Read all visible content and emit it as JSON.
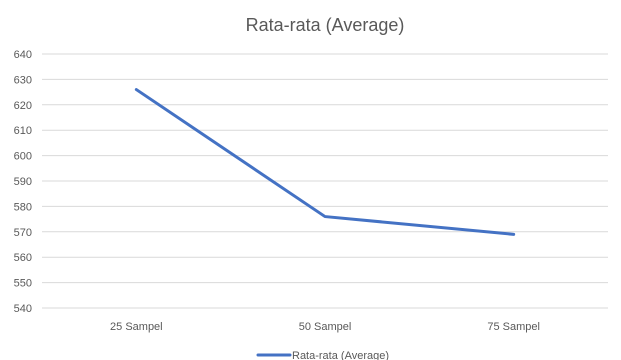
{
  "chart_data": {
    "type": "line",
    "title": "Rata-rata (Average)",
    "xlabel": "",
    "ylabel": "",
    "categories": [
      "25 Sampel",
      "50 Sampel",
      "75 Sampel"
    ],
    "series": [
      {
        "name": "Rata-rata (Average)",
        "values": [
          626,
          576,
          569
        ],
        "color": "#4472c4"
      }
    ],
    "ylim": [
      540,
      640
    ],
    "yticks": [
      "640",
      "630",
      "620",
      "610",
      "600",
      "590",
      "580",
      "570",
      "560",
      "550",
      "540"
    ],
    "grid": true,
    "legend_position": "bottom"
  }
}
